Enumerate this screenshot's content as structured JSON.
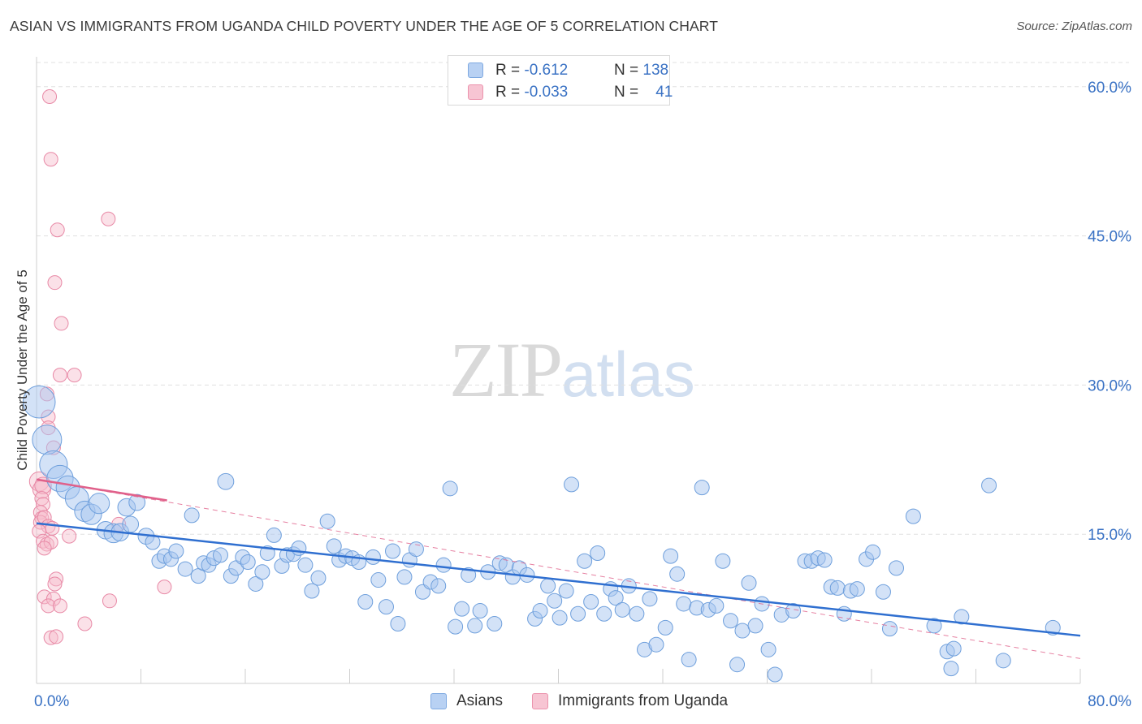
{
  "header": {
    "title": "ASIAN VS IMMIGRANTS FROM UGANDA CHILD POVERTY UNDER THE AGE OF 5 CORRELATION CHART",
    "source": "Source: ZipAtlas.com"
  },
  "watermark": {
    "part1": "ZIP",
    "part2": "atlas"
  },
  "legend": {
    "rows": [
      {
        "r_label": "R = ",
        "r_value": "-0.612",
        "n_label": "N = ",
        "n_value": "138",
        "fill": "#b8d1f3",
        "stroke": "#7ea9e1"
      },
      {
        "r_label": "R = ",
        "r_value": "-0.033",
        "n_label": "N = ",
        "n_value": "41",
        "fill": "#f7c5d3",
        "stroke": "#eb93ad"
      }
    ]
  },
  "bottom_legend": [
    {
      "label": "Asians",
      "fill": "#b8d1f3",
      "stroke": "#7ea9e1"
    },
    {
      "label": "Immigrants from Uganda",
      "fill": "#f7c5d3",
      "stroke": "#eb93ad"
    }
  ],
  "chart_data": {
    "type": "scatter",
    "title": "ASIAN VS IMMIGRANTS FROM UGANDA CHILD POVERTY UNDER THE AGE OF 5 CORRELATION CHART",
    "xlabel": "",
    "ylabel": "Child Poverty Under the Age of 5",
    "xlim": [
      0,
      80
    ],
    "ylim": [
      0,
      63
    ],
    "x_tick_labels": [
      {
        "value": 0,
        "label": "0.0%"
      },
      {
        "value": 80,
        "label": "80.0%"
      }
    ],
    "y_tick_labels": [
      {
        "value": 15,
        "label": "15.0%"
      },
      {
        "value": 30,
        "label": "30.0%"
      },
      {
        "value": 45,
        "label": "45.0%"
      },
      {
        "value": 60,
        "label": "60.0%"
      }
    ],
    "x_minor_ticks": [
      0,
      8,
      16,
      24,
      32,
      40,
      48,
      56,
      64,
      72,
      80
    ],
    "grid": "horizontal-dashed",
    "legend_position": "top-center",
    "colors": {
      "asians_fill": "#a8c6ef",
      "asians_stroke": "#6e9fdc",
      "asians_trend": "#2f6fd0",
      "uganda_fill": "#f6bccd",
      "uganda_stroke": "#e889a6",
      "uganda_trend": "#e0608a",
      "y_tick_text": "#3a72c4",
      "grid": "#e0e0e0"
    },
    "series": [
      {
        "name": "Asians",
        "r": -0.612,
        "n": 138,
        "trend": {
          "x": [
            0,
            80
          ],
          "y": [
            16.1,
            4.8
          ]
        },
        "points": [
          {
            "x": 0.2,
            "y": 28.3,
            "s": 2.2
          },
          {
            "x": 0.8,
            "y": 24.5,
            "s": 2.0
          },
          {
            "x": 1.3,
            "y": 22.0,
            "s": 1.9
          },
          {
            "x": 1.8,
            "y": 20.6,
            "s": 1.8
          },
          {
            "x": 2.4,
            "y": 19.7,
            "s": 1.6
          },
          {
            "x": 3.1,
            "y": 18.6,
            "s": 1.6
          },
          {
            "x": 3.7,
            "y": 17.3,
            "s": 1.4
          },
          {
            "x": 4.2,
            "y": 17.0,
            "s": 1.4
          },
          {
            "x": 4.8,
            "y": 18.1,
            "s": 1.4
          },
          {
            "x": 5.3,
            "y": 15.4,
            "s": 1.2
          },
          {
            "x": 5.9,
            "y": 15.1,
            "s": 1.3
          },
          {
            "x": 6.4,
            "y": 15.2,
            "s": 1.2
          },
          {
            "x": 6.9,
            "y": 17.7,
            "s": 1.2
          },
          {
            "x": 7.2,
            "y": 16.0,
            "s": 1.1
          },
          {
            "x": 7.7,
            "y": 18.2,
            "s": 1.1
          },
          {
            "x": 8.4,
            "y": 14.8,
            "s": 1.1
          },
          {
            "x": 8.9,
            "y": 14.2,
            "s": 1.0
          },
          {
            "x": 9.4,
            "y": 12.3,
            "s": 1.0
          },
          {
            "x": 9.8,
            "y": 12.8,
            "s": 1.0
          },
          {
            "x": 10.3,
            "y": 12.5,
            "s": 1.0
          },
          {
            "x": 10.7,
            "y": 13.3,
            "s": 1.0
          },
          {
            "x": 11.4,
            "y": 11.5,
            "s": 1.0
          },
          {
            "x": 11.9,
            "y": 16.9,
            "s": 1.0
          },
          {
            "x": 12.4,
            "y": 10.8,
            "s": 1.0
          },
          {
            "x": 12.8,
            "y": 12.1,
            "s": 1.0
          },
          {
            "x": 13.2,
            "y": 11.9,
            "s": 1.0
          },
          {
            "x": 13.6,
            "y": 12.6,
            "s": 1.0
          },
          {
            "x": 14.1,
            "y": 12.9,
            "s": 1.0
          },
          {
            "x": 14.5,
            "y": 20.3,
            "s": 1.1
          },
          {
            "x": 14.9,
            "y": 10.8,
            "s": 1.0
          },
          {
            "x": 15.3,
            "y": 11.6,
            "s": 1.0
          },
          {
            "x": 15.8,
            "y": 12.7,
            "s": 1.0
          },
          {
            "x": 16.2,
            "y": 12.2,
            "s": 1.0
          },
          {
            "x": 16.8,
            "y": 10.0,
            "s": 1.0
          },
          {
            "x": 17.3,
            "y": 11.2,
            "s": 1.0
          },
          {
            "x": 17.7,
            "y": 13.1,
            "s": 1.0
          },
          {
            "x": 18.2,
            "y": 14.9,
            "s": 1.0
          },
          {
            "x": 18.8,
            "y": 11.8,
            "s": 1.0
          },
          {
            "x": 19.2,
            "y": 12.9,
            "s": 1.0
          },
          {
            "x": 19.7,
            "y": 13.0,
            "s": 1.0
          },
          {
            "x": 20.1,
            "y": 13.6,
            "s": 1.0
          },
          {
            "x": 20.6,
            "y": 11.9,
            "s": 1.0
          },
          {
            "x": 21.1,
            "y": 9.3,
            "s": 1.0
          },
          {
            "x": 21.6,
            "y": 10.6,
            "s": 1.0
          },
          {
            "x": 22.3,
            "y": 16.3,
            "s": 1.0
          },
          {
            "x": 22.8,
            "y": 13.8,
            "s": 1.0
          },
          {
            "x": 23.2,
            "y": 12.4,
            "s": 1.0
          },
          {
            "x": 23.7,
            "y": 12.8,
            "s": 1.0
          },
          {
            "x": 24.2,
            "y": 12.6,
            "s": 1.0
          },
          {
            "x": 24.7,
            "y": 12.2,
            "s": 1.0
          },
          {
            "x": 25.2,
            "y": 8.2,
            "s": 1.0
          },
          {
            "x": 25.8,
            "y": 12.7,
            "s": 1.0
          },
          {
            "x": 26.2,
            "y": 10.4,
            "s": 1.0
          },
          {
            "x": 26.8,
            "y": 7.7,
            "s": 1.0
          },
          {
            "x": 27.3,
            "y": 13.3,
            "s": 1.0
          },
          {
            "x": 27.7,
            "y": 6.0,
            "s": 1.0
          },
          {
            "x": 28.2,
            "y": 10.7,
            "s": 1.0
          },
          {
            "x": 28.6,
            "y": 12.4,
            "s": 1.0
          },
          {
            "x": 29.1,
            "y": 13.5,
            "s": 1.0
          },
          {
            "x": 29.6,
            "y": 9.2,
            "s": 1.0
          },
          {
            "x": 30.2,
            "y": 10.2,
            "s": 1.0
          },
          {
            "x": 30.8,
            "y": 9.8,
            "s": 1.0
          },
          {
            "x": 31.2,
            "y": 11.9,
            "s": 1.0
          },
          {
            "x": 31.7,
            "y": 19.6,
            "s": 1.0
          },
          {
            "x": 32.1,
            "y": 5.7,
            "s": 1.0
          },
          {
            "x": 32.6,
            "y": 7.5,
            "s": 1.0
          },
          {
            "x": 33.1,
            "y": 10.9,
            "s": 1.0
          },
          {
            "x": 33.6,
            "y": 5.8,
            "s": 1.0
          },
          {
            "x": 34.0,
            "y": 7.3,
            "s": 1.0
          },
          {
            "x": 34.6,
            "y": 11.2,
            "s": 1.0
          },
          {
            "x": 35.1,
            "y": 6.0,
            "s": 1.0
          },
          {
            "x": 35.5,
            "y": 12.1,
            "s": 1.0
          },
          {
            "x": 36.0,
            "y": 11.9,
            "s": 1.0
          },
          {
            "x": 36.5,
            "y": 10.7,
            "s": 1.0
          },
          {
            "x": 37.0,
            "y": 11.6,
            "s": 1.0
          },
          {
            "x": 37.6,
            "y": 10.9,
            "s": 1.0
          },
          {
            "x": 38.2,
            "y": 6.5,
            "s": 1.0
          },
          {
            "x": 38.6,
            "y": 7.3,
            "s": 1.0
          },
          {
            "x": 39.2,
            "y": 9.8,
            "s": 1.0
          },
          {
            "x": 39.7,
            "y": 8.3,
            "s": 1.0
          },
          {
            "x": 40.1,
            "y": 6.6,
            "s": 1.0
          },
          {
            "x": 40.6,
            "y": 9.3,
            "s": 1.0
          },
          {
            "x": 41.0,
            "y": 20.0,
            "s": 1.0
          },
          {
            "x": 41.5,
            "y": 7.0,
            "s": 1.0
          },
          {
            "x": 42.0,
            "y": 12.3,
            "s": 1.0
          },
          {
            "x": 42.5,
            "y": 8.2,
            "s": 1.0
          },
          {
            "x": 43.0,
            "y": 13.1,
            "s": 1.0
          },
          {
            "x": 43.5,
            "y": 7.0,
            "s": 1.0
          },
          {
            "x": 44.0,
            "y": 9.5,
            "s": 1.0
          },
          {
            "x": 44.4,
            "y": 8.6,
            "s": 1.0
          },
          {
            "x": 44.9,
            "y": 7.4,
            "s": 1.0
          },
          {
            "x": 45.4,
            "y": 9.8,
            "s": 1.0
          },
          {
            "x": 46.0,
            "y": 7.0,
            "s": 1.0
          },
          {
            "x": 46.6,
            "y": 3.4,
            "s": 1.0
          },
          {
            "x": 47.0,
            "y": 8.5,
            "s": 1.0
          },
          {
            "x": 47.5,
            "y": 3.9,
            "s": 1.0
          },
          {
            "x": 48.2,
            "y": 5.6,
            "s": 1.0
          },
          {
            "x": 48.6,
            "y": 12.8,
            "s": 1.0
          },
          {
            "x": 49.1,
            "y": 11.0,
            "s": 1.0
          },
          {
            "x": 49.6,
            "y": 8.0,
            "s": 1.0
          },
          {
            "x": 50.0,
            "y": 2.4,
            "s": 1.0
          },
          {
            "x": 50.6,
            "y": 7.6,
            "s": 1.0
          },
          {
            "x": 51.0,
            "y": 19.7,
            "s": 1.0
          },
          {
            "x": 51.5,
            "y": 7.4,
            "s": 1.0
          },
          {
            "x": 52.1,
            "y": 7.8,
            "s": 1.0
          },
          {
            "x": 52.6,
            "y": 12.3,
            "s": 1.0
          },
          {
            "x": 53.2,
            "y": 6.3,
            "s": 1.0
          },
          {
            "x": 53.7,
            "y": 1.9,
            "s": 1.0
          },
          {
            "x": 54.1,
            "y": 5.3,
            "s": 1.0
          },
          {
            "x": 54.6,
            "y": 10.1,
            "s": 1.0
          },
          {
            "x": 55.1,
            "y": 5.8,
            "s": 1.0
          },
          {
            "x": 55.6,
            "y": 8.0,
            "s": 1.0
          },
          {
            "x": 56.1,
            "y": 3.4,
            "s": 1.0
          },
          {
            "x": 56.6,
            "y": 0.9,
            "s": 1.0
          },
          {
            "x": 57.1,
            "y": 6.9,
            "s": 1.0
          },
          {
            "x": 58.0,
            "y": 7.3,
            "s": 1.0
          },
          {
            "x": 58.9,
            "y": 12.3,
            "s": 1.0
          },
          {
            "x": 59.4,
            "y": 12.3,
            "s": 1.0
          },
          {
            "x": 59.9,
            "y": 12.6,
            "s": 1.0
          },
          {
            "x": 60.4,
            "y": 12.4,
            "s": 1.0
          },
          {
            "x": 60.9,
            "y": 9.7,
            "s": 1.0
          },
          {
            "x": 61.4,
            "y": 9.6,
            "s": 1.0
          },
          {
            "x": 61.9,
            "y": 7.0,
            "s": 1.0
          },
          {
            "x": 62.4,
            "y": 9.3,
            "s": 1.0
          },
          {
            "x": 62.9,
            "y": 9.5,
            "s": 1.0
          },
          {
            "x": 63.6,
            "y": 12.5,
            "s": 1.0
          },
          {
            "x": 64.1,
            "y": 13.2,
            "s": 1.0
          },
          {
            "x": 64.9,
            "y": 9.2,
            "s": 1.0
          },
          {
            "x": 65.4,
            "y": 5.5,
            "s": 1.0
          },
          {
            "x": 65.9,
            "y": 11.6,
            "s": 1.0
          },
          {
            "x": 67.2,
            "y": 16.8,
            "s": 1.0
          },
          {
            "x": 68.8,
            "y": 5.8,
            "s": 1.0
          },
          {
            "x": 69.8,
            "y": 3.2,
            "s": 1.0
          },
          {
            "x": 70.3,
            "y": 3.5,
            "s": 1.0
          },
          {
            "x": 70.9,
            "y": 6.7,
            "s": 1.0
          },
          {
            "x": 70.1,
            "y": 1.5,
            "s": 1.0
          },
          {
            "x": 73.0,
            "y": 19.9,
            "s": 1.0
          },
          {
            "x": 74.1,
            "y": 2.3,
            "s": 1.0
          },
          {
            "x": 77.9,
            "y": 5.6,
            "s": 1.0
          }
        ]
      },
      {
        "name": "Immigrants from Uganda",
        "r": -0.033,
        "n": 41,
        "trend": {
          "x": [
            0,
            10
          ],
          "y": [
            20.5,
            18.4
          ]
        },
        "trend_extended": {
          "x": [
            0,
            80
          ],
          "y": [
            20.5,
            2.5
          ]
        },
        "points": [
          {
            "x": 1.0,
            "y": 59.0,
            "s": 1.0
          },
          {
            "x": 1.1,
            "y": 52.7,
            "s": 1.0
          },
          {
            "x": 5.5,
            "y": 46.7,
            "s": 1.0
          },
          {
            "x": 1.6,
            "y": 45.6,
            "s": 1.0
          },
          {
            "x": 1.4,
            "y": 40.3,
            "s": 1.0
          },
          {
            "x": 1.9,
            "y": 36.2,
            "s": 1.0
          },
          {
            "x": 1.8,
            "y": 31.0,
            "s": 1.0
          },
          {
            "x": 2.9,
            "y": 31.0,
            "s": 1.0
          },
          {
            "x": 0.8,
            "y": 29.1,
            "s": 1.0
          },
          {
            "x": 0.9,
            "y": 26.8,
            "s": 1.0
          },
          {
            "x": 0.9,
            "y": 25.7,
            "s": 1.0
          },
          {
            "x": 1.3,
            "y": 23.7,
            "s": 1.0
          },
          {
            "x": 0.2,
            "y": 20.3,
            "s": 1.4
          },
          {
            "x": 0.4,
            "y": 19.5,
            "s": 1.3
          },
          {
            "x": 0.5,
            "y": 19.9,
            "s": 1.2
          },
          {
            "x": 0.4,
            "y": 18.6,
            "s": 1.0
          },
          {
            "x": 0.5,
            "y": 18.0,
            "s": 1.0
          },
          {
            "x": 0.3,
            "y": 17.2,
            "s": 1.0
          },
          {
            "x": 0.4,
            "y": 16.6,
            "s": 1.0
          },
          {
            "x": 0.3,
            "y": 16.2,
            "s": 1.0
          },
          {
            "x": 0.6,
            "y": 16.7,
            "s": 1.0
          },
          {
            "x": 0.9,
            "y": 15.8,
            "s": 1.0
          },
          {
            "x": 1.2,
            "y": 15.6,
            "s": 1.0
          },
          {
            "x": 0.2,
            "y": 15.3,
            "s": 1.0
          },
          {
            "x": 0.5,
            "y": 14.3,
            "s": 1.0
          },
          {
            "x": 0.8,
            "y": 14.0,
            "s": 1.0
          },
          {
            "x": 1.1,
            "y": 14.2,
            "s": 1.0
          },
          {
            "x": 0.6,
            "y": 13.6,
            "s": 1.0
          },
          {
            "x": 2.5,
            "y": 14.8,
            "s": 1.0
          },
          {
            "x": 6.3,
            "y": 16.0,
            "s": 1.0
          },
          {
            "x": 1.5,
            "y": 10.5,
            "s": 1.0
          },
          {
            "x": 1.4,
            "y": 10.0,
            "s": 1.0
          },
          {
            "x": 0.6,
            "y": 8.7,
            "s": 1.0
          },
          {
            "x": 1.3,
            "y": 8.5,
            "s": 1.0
          },
          {
            "x": 0.9,
            "y": 7.8,
            "s": 1.0
          },
          {
            "x": 1.8,
            "y": 7.8,
            "s": 1.0
          },
          {
            "x": 5.6,
            "y": 8.3,
            "s": 1.0
          },
          {
            "x": 9.8,
            "y": 9.7,
            "s": 1.0
          },
          {
            "x": 3.7,
            "y": 6.0,
            "s": 1.0
          },
          {
            "x": 1.1,
            "y": 4.6,
            "s": 1.0
          },
          {
            "x": 1.5,
            "y": 4.7,
            "s": 1.0
          }
        ]
      }
    ]
  }
}
